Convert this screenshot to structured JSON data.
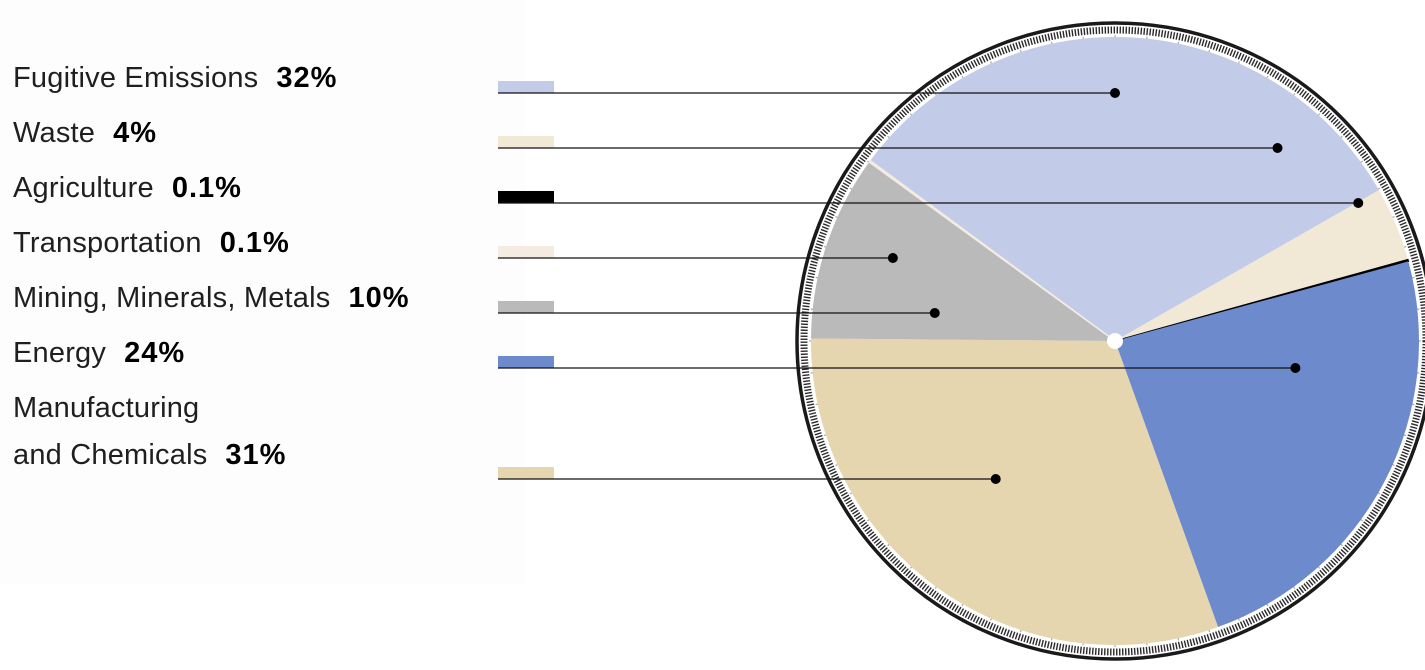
{
  "chart_data": {
    "type": "pie",
    "slices": [
      {
        "label": "Fugitive Emissions",
        "value": 32,
        "display": "32%",
        "color": "#c2cbe8"
      },
      {
        "label": "Waste",
        "value": 4,
        "display": "4%",
        "color": "#f1e8d5"
      },
      {
        "label": "Agriculture",
        "value": 0.1,
        "display": "0.1%",
        "color": "#000000"
      },
      {
        "label": "Energy",
        "value": 24,
        "display": "24%",
        "color": "#6d8bcc"
      },
      {
        "label": "Manufacturing and Chemicals",
        "label_lines": [
          "Manufacturing",
          "and Chemicals"
        ],
        "value": 31,
        "display": "31%",
        "color": "#e6d6b0"
      },
      {
        "label": "Mining, Minerals, Metals",
        "value": 10,
        "display": "10%",
        "color": "#bababa"
      },
      {
        "label": "Transportation",
        "value": 0.1,
        "display": "0.1%",
        "color": "#f4ece0"
      }
    ],
    "legend_order": [
      "Fugitive Emissions",
      "Waste",
      "Agriculture",
      "Transportation",
      "Mining, Minerals, Metals",
      "Energy",
      "Manufacturing and Chemicals"
    ],
    "legend_placement": "left"
  }
}
